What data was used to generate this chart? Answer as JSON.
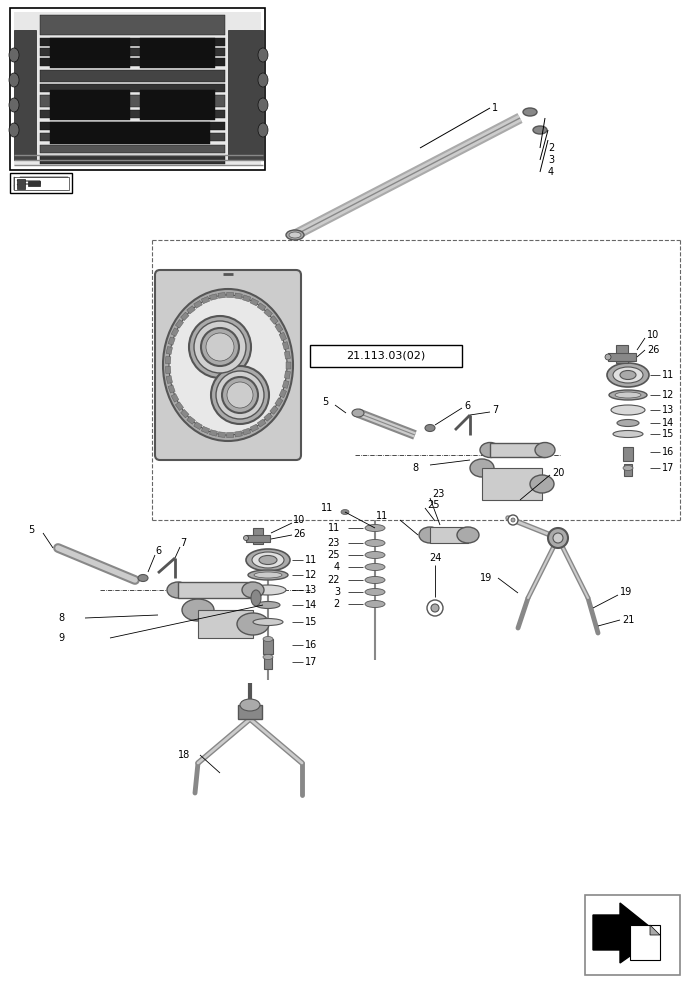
{
  "bg_color": "#ffffff",
  "lc": "#000000",
  "gray1": "#333333",
  "gray2": "#555555",
  "gray3": "#888888",
  "gray4": "#aaaaaa",
  "gray5": "#cccccc",
  "gray6": "#dddddd",
  "dash_color": "#666666",
  "ref_label": "21.113.03(02)"
}
